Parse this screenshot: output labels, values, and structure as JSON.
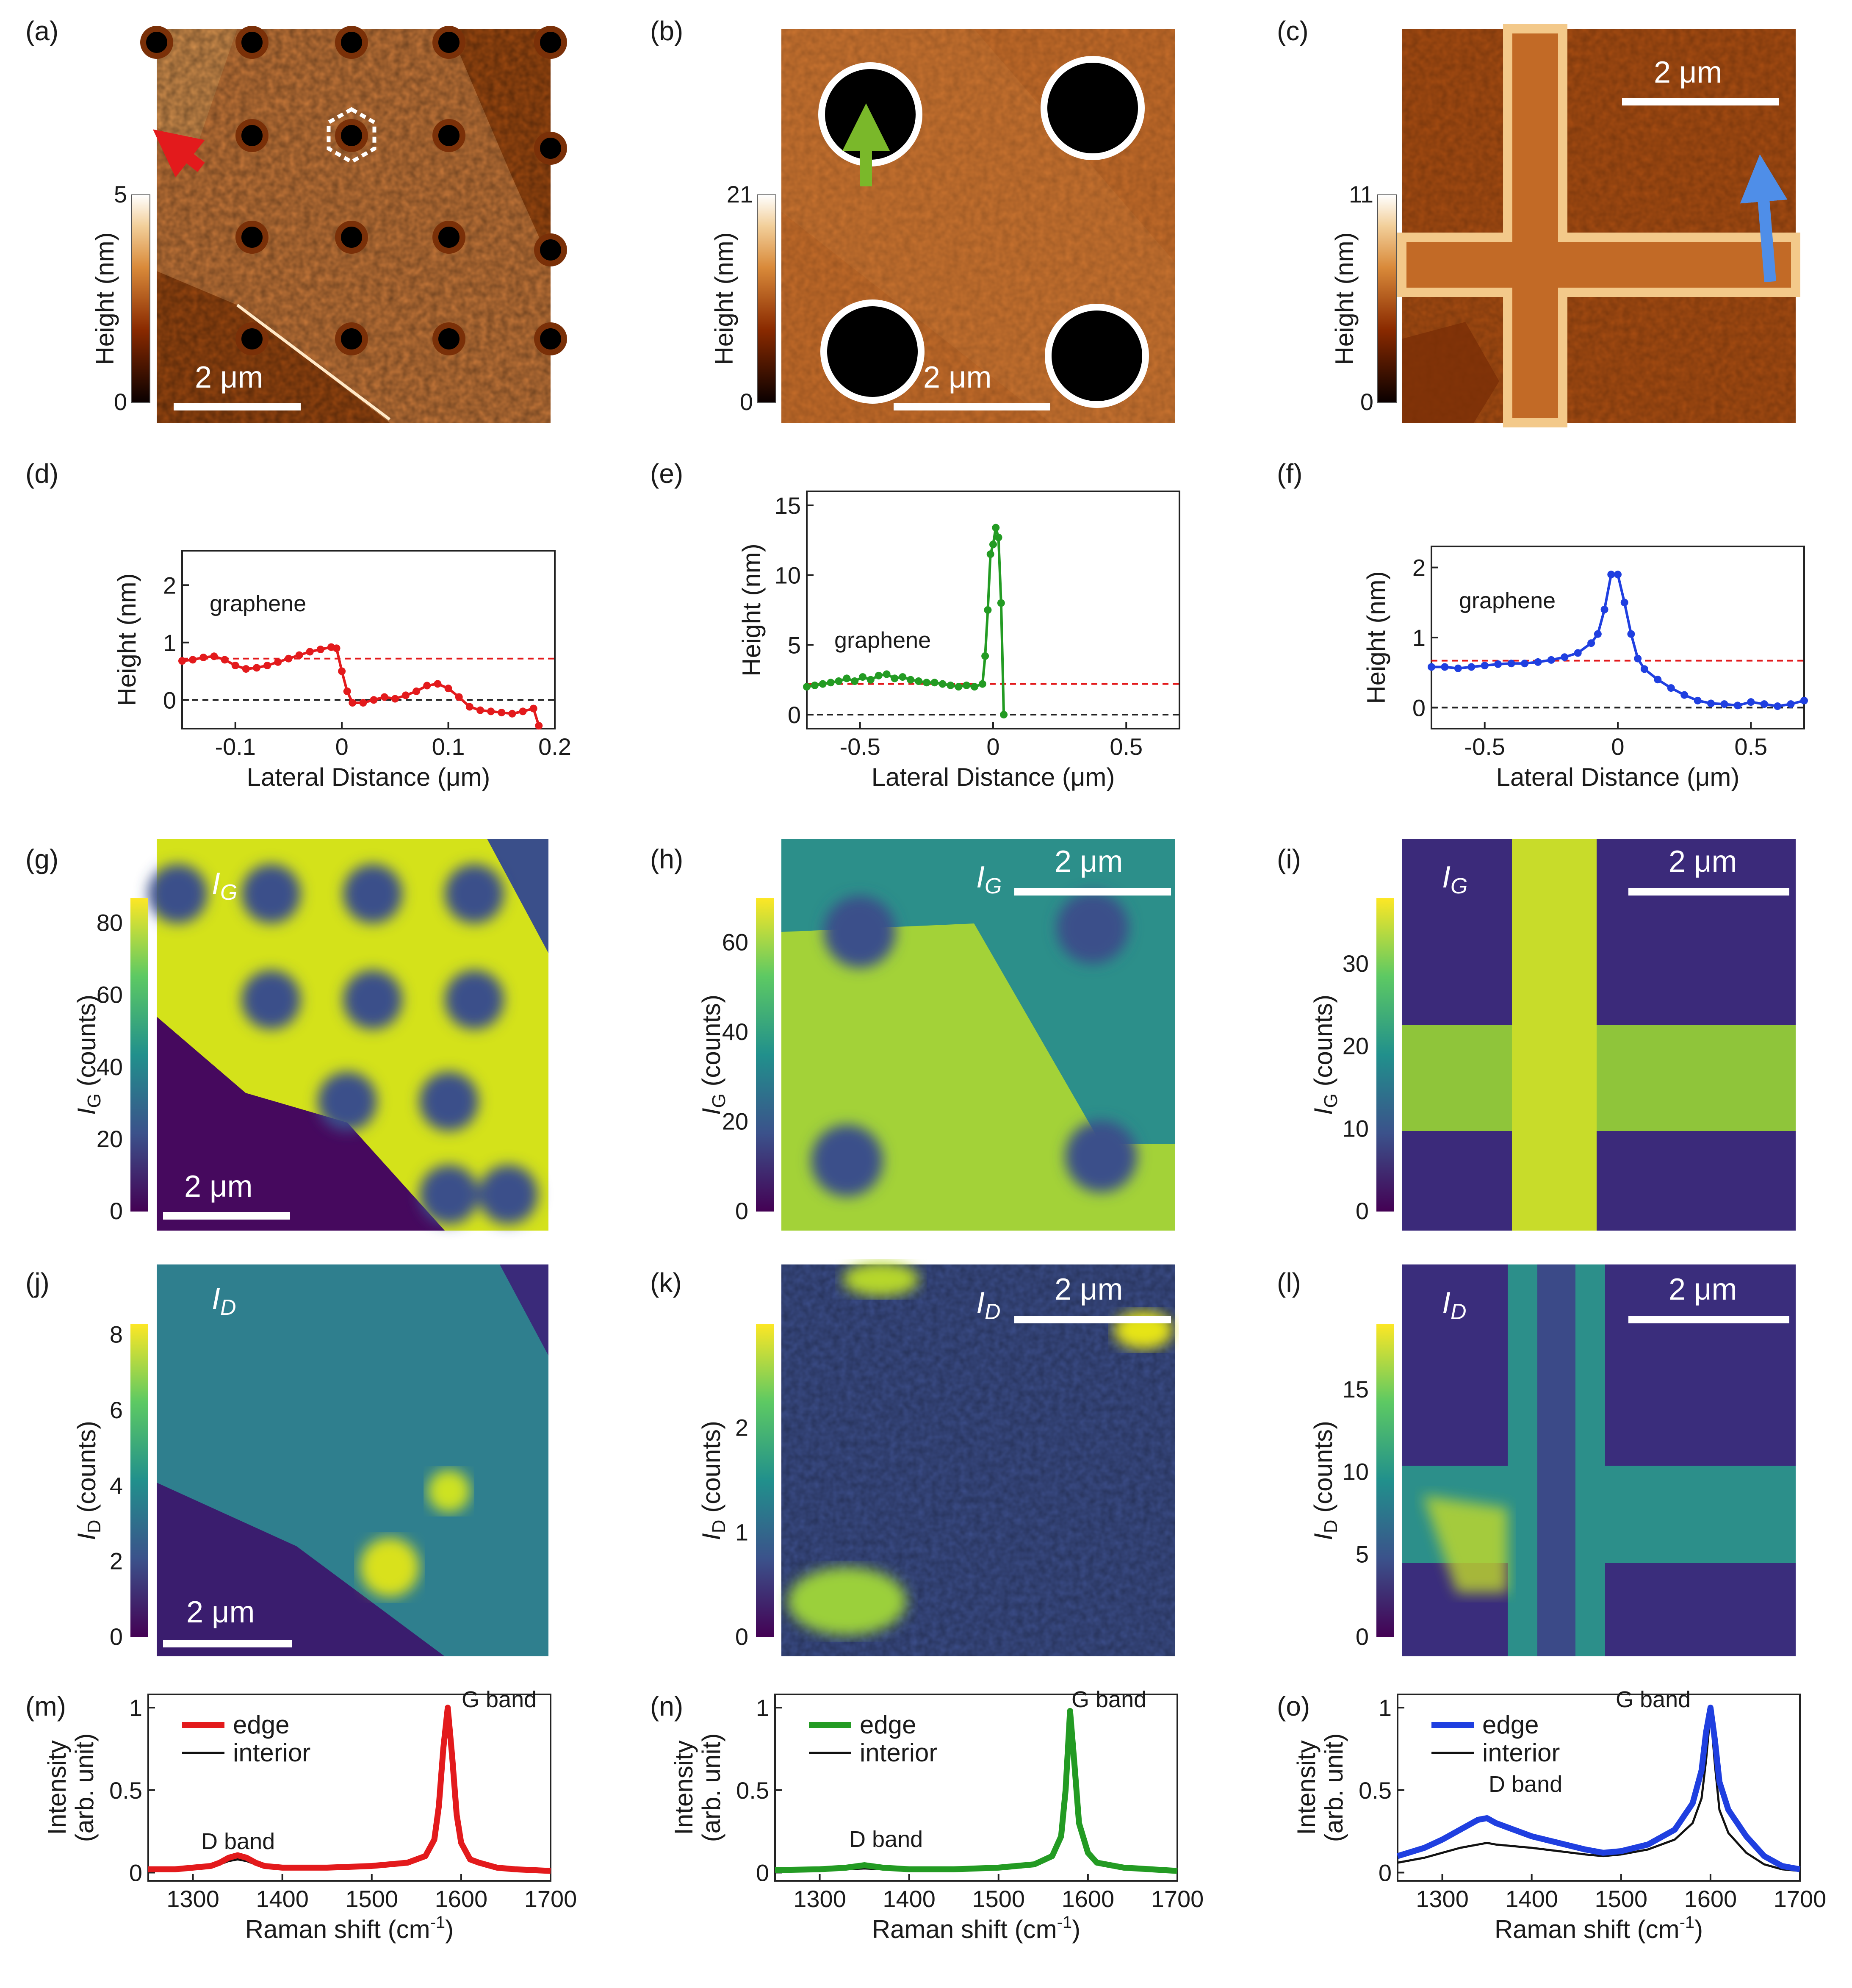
{
  "panels": {
    "a": {
      "label": "(a)",
      "cbar_title": "Height (nm)",
      "cbar_max": "5",
      "cbar_min": "0",
      "scale": "2 μm"
    },
    "b": {
      "label": "(b)",
      "cbar_title": "Height (nm)",
      "cbar_max": "21",
      "cbar_min": "0",
      "scale": "2 μm"
    },
    "c": {
      "label": "(c)",
      "cbar_title": "Height (nm)",
      "cbar_max": "11",
      "cbar_min": "0",
      "scale": "2 μm"
    },
    "d": {
      "label": "(d)"
    },
    "e": {
      "label": "(e)"
    },
    "f": {
      "label": "(f)"
    },
    "g": {
      "label": "(g)",
      "map_label": "I",
      "map_sub": "G",
      "cbar_title": "I",
      "cbar_sub": "G",
      "cbar_unit": " (counts)",
      "ticks": [
        "0",
        "20",
        "40",
        "60",
        "80"
      ],
      "scale": "2 μm"
    },
    "h": {
      "label": "(h)",
      "map_label": "I",
      "map_sub": "G",
      "cbar_title": "I",
      "cbar_sub": "G",
      "cbar_unit": " (counts)",
      "ticks": [
        "0",
        "20",
        "40",
        "60"
      ],
      "scale": "2 μm"
    },
    "i": {
      "label": "(i)",
      "map_label": "I",
      "map_sub": "G",
      "cbar_title": "I",
      "cbar_sub": "G",
      "cbar_unit": " (counts)",
      "ticks": [
        "0",
        "10",
        "20",
        "30"
      ],
      "scale": "2 μm"
    },
    "j": {
      "label": "(j)",
      "map_label": "I",
      "map_sub": "D",
      "cbar_title": "I",
      "cbar_sub": "D",
      "cbar_unit": " (counts)",
      "ticks": [
        "0",
        "2",
        "4",
        "6",
        "8"
      ],
      "scale": "2 μm"
    },
    "k": {
      "label": "(k)",
      "map_label": "I",
      "map_sub": "D",
      "cbar_title": "I",
      "cbar_sub": "D",
      "cbar_unit": " (counts)",
      "ticks": [
        "0",
        "1",
        "2"
      ],
      "scale": "2 μm"
    },
    "l": {
      "label": "(l)",
      "map_label": "I",
      "map_sub": "D",
      "cbar_title": "I",
      "cbar_sub": "D",
      "cbar_unit": " (counts)",
      "ticks": [
        "0",
        "5",
        "10",
        "15"
      ],
      "scale": "2 μm"
    },
    "m": {
      "label": "(m)"
    },
    "n": {
      "label": "(n)"
    },
    "o": {
      "label": "(o)"
    }
  },
  "colors": {
    "red": "#e31a1c",
    "green": "#239b23",
    "blue": "#1f3fe0",
    "ref_dash": "#e31a1c"
  },
  "chart_data": [
    {
      "id": "d",
      "type": "line",
      "xlabel": "Lateral Distance  (μm)",
      "ylabel": "Height  (nm)",
      "xlim": [
        -0.15,
        0.2
      ],
      "ylim": [
        -0.5,
        2.6
      ],
      "xticks": [
        "-0.1",
        "0",
        "0.1",
        "0.2"
      ],
      "yticks": [
        "0",
        "1",
        "2"
      ],
      "annotation": "graphene",
      "ref_lines": [
        0.72,
        0
      ],
      "series": [
        {
          "color": "red",
          "x": [
            -0.15,
            -0.14,
            -0.13,
            -0.12,
            -0.11,
            -0.1,
            -0.09,
            -0.08,
            -0.07,
            -0.06,
            -0.05,
            -0.04,
            -0.03,
            -0.02,
            -0.01,
            -0.005,
            0,
            0.005,
            0.01,
            0.02,
            0.03,
            0.04,
            0.05,
            0.06,
            0.07,
            0.08,
            0.09,
            0.1,
            0.11,
            0.12,
            0.13,
            0.14,
            0.15,
            0.16,
            0.17,
            0.18,
            0.185
          ],
          "y": [
            0.68,
            0.7,
            0.74,
            0.76,
            0.7,
            0.6,
            0.54,
            0.56,
            0.6,
            0.66,
            0.72,
            0.78,
            0.84,
            0.88,
            0.92,
            0.9,
            0.5,
            0.15,
            -0.05,
            -0.05,
            0.0,
            0.05,
            0.02,
            0.08,
            0.15,
            0.25,
            0.28,
            0.2,
            0.05,
            -0.12,
            -0.18,
            -0.2,
            -0.22,
            -0.24,
            -0.2,
            -0.15,
            -0.45
          ]
        }
      ]
    },
    {
      "id": "e",
      "type": "line",
      "xlabel": "Lateral Distance  (μm)",
      "ylabel": "Height  (nm)",
      "xlim": [
        -0.7,
        0.7
      ],
      "ylim": [
        -1,
        16
      ],
      "xticks": [
        "-0.5",
        "0",
        "0.5"
      ],
      "yticks": [
        "0",
        "5",
        "10",
        "15"
      ],
      "annotation": "graphene",
      "ref_lines": [
        2.2,
        0
      ],
      "series": [
        {
          "color": "green",
          "x": [
            -0.7,
            -0.67,
            -0.64,
            -0.61,
            -0.58,
            -0.55,
            -0.52,
            -0.49,
            -0.46,
            -0.43,
            -0.4,
            -0.37,
            -0.34,
            -0.31,
            -0.28,
            -0.25,
            -0.22,
            -0.19,
            -0.16,
            -0.13,
            -0.1,
            -0.07,
            -0.04,
            -0.03,
            -0.02,
            -0.01,
            0.0,
            0.01,
            0.02,
            0.03,
            0.04
          ],
          "y": [
            2.0,
            2.1,
            2.2,
            2.3,
            2.4,
            2.6,
            2.4,
            2.7,
            2.5,
            2.8,
            2.9,
            2.6,
            2.7,
            2.5,
            2.4,
            2.3,
            2.3,
            2.2,
            2.1,
            2.0,
            2.1,
            2.0,
            2.2,
            4.2,
            7.5,
            11.5,
            12.2,
            13.4,
            12.7,
            8.0,
            0.0
          ]
        }
      ]
    },
    {
      "id": "f",
      "type": "line",
      "xlabel": "Lateral Distance  (μm)",
      "ylabel": "Height  (nm)",
      "xlim": [
        -0.7,
        0.7
      ],
      "ylim": [
        -0.3,
        2.3
      ],
      "xticks": [
        "-0.5",
        "0",
        "0.5"
      ],
      "yticks": [
        "0",
        "1",
        "2"
      ],
      "annotation": "graphene",
      "ref_lines": [
        0.67,
        0
      ],
      "series": [
        {
          "color": "blue",
          "x": [
            -0.7,
            -0.65,
            -0.6,
            -0.55,
            -0.5,
            -0.45,
            -0.4,
            -0.35,
            -0.3,
            -0.25,
            -0.2,
            -0.15,
            -0.1,
            -0.075,
            -0.05,
            -0.025,
            0,
            0.025,
            0.05,
            0.075,
            0.1,
            0.15,
            0.2,
            0.25,
            0.3,
            0.35,
            0.4,
            0.45,
            0.5,
            0.55,
            0.6,
            0.65,
            0.7
          ],
          "y": [
            0.58,
            0.58,
            0.56,
            0.58,
            0.6,
            0.62,
            0.63,
            0.63,
            0.65,
            0.68,
            0.72,
            0.78,
            0.92,
            1.05,
            1.4,
            1.9,
            1.9,
            1.5,
            1.05,
            0.7,
            0.55,
            0.4,
            0.28,
            0.18,
            0.1,
            0.06,
            0.05,
            0.03,
            0.08,
            0.05,
            0.02,
            0.05,
            0.1
          ]
        }
      ]
    },
    {
      "id": "m",
      "type": "line",
      "xlabel": "Raman shift  (cm",
      "xlabel_sup": "-1",
      "xlabel_end": ")",
      "ylabel": "Intensity",
      "ylabel2": "(arb. unit)",
      "xlim": [
        1250,
        1700
      ],
      "ylim": [
        -0.05,
        1.08
      ],
      "xticks": [
        "1300",
        "1400",
        "1500",
        "1600",
        "1700"
      ],
      "yticks": [
        "0",
        "0.5",
        "1"
      ],
      "annotations": [
        "D band",
        "G band"
      ],
      "legend": [
        "edge",
        "interior"
      ],
      "series": [
        {
          "name": "edge",
          "color": "red",
          "x": [
            1250,
            1280,
            1300,
            1320,
            1330,
            1340,
            1350,
            1360,
            1370,
            1380,
            1400,
            1450,
            1500,
            1540,
            1560,
            1570,
            1575,
            1580,
            1585,
            1590,
            1595,
            1600,
            1610,
            1620,
            1640,
            1660,
            1700
          ],
          "y": [
            0.02,
            0.02,
            0.03,
            0.04,
            0.06,
            0.09,
            0.105,
            0.09,
            0.06,
            0.04,
            0.03,
            0.03,
            0.04,
            0.06,
            0.1,
            0.2,
            0.4,
            0.75,
            1.0,
            0.7,
            0.35,
            0.18,
            0.08,
            0.06,
            0.03,
            0.02,
            0.01
          ]
        },
        {
          "name": "interior",
          "color": "black",
          "x": [
            1250,
            1280,
            1300,
            1320,
            1330,
            1340,
            1350,
            1360,
            1370,
            1380,
            1400,
            1450,
            1500,
            1540,
            1560,
            1570,
            1575,
            1580,
            1585,
            1590,
            1595,
            1600,
            1610,
            1620,
            1640,
            1660,
            1700
          ],
          "y": [
            0.02,
            0.02,
            0.03,
            0.04,
            0.05,
            0.07,
            0.08,
            0.07,
            0.05,
            0.04,
            0.03,
            0.03,
            0.04,
            0.06,
            0.1,
            0.2,
            0.4,
            0.75,
            0.98,
            0.68,
            0.34,
            0.18,
            0.08,
            0.06,
            0.03,
            0.02,
            0.01
          ]
        }
      ]
    },
    {
      "id": "n",
      "type": "line",
      "xlabel": "Raman shift  (cm",
      "xlabel_sup": "-1",
      "xlabel_end": ")",
      "ylabel": "Intensity",
      "ylabel2": "(arb. unit)",
      "xlim": [
        1250,
        1700
      ],
      "ylim": [
        -0.05,
        1.08
      ],
      "xticks": [
        "1300",
        "1400",
        "1500",
        "1600",
        "1700"
      ],
      "yticks": [
        "0",
        "0.5",
        "1"
      ],
      "annotations": [
        "D band",
        "G band"
      ],
      "legend": [
        "edge",
        "interior"
      ],
      "series": [
        {
          "name": "edge",
          "color": "green",
          "x": [
            1250,
            1300,
            1330,
            1350,
            1370,
            1400,
            1450,
            1500,
            1540,
            1560,
            1570,
            1575,
            1580,
            1585,
            1590,
            1600,
            1610,
            1640,
            1700
          ],
          "y": [
            0.015,
            0.02,
            0.03,
            0.045,
            0.03,
            0.02,
            0.02,
            0.03,
            0.05,
            0.1,
            0.22,
            0.5,
            0.98,
            0.65,
            0.3,
            0.12,
            0.06,
            0.03,
            0.01
          ]
        },
        {
          "name": "interior",
          "color": "black",
          "x": [
            1250,
            1300,
            1330,
            1350,
            1370,
            1400,
            1450,
            1500,
            1540,
            1560,
            1570,
            1575,
            1580,
            1585,
            1590,
            1600,
            1610,
            1640,
            1700
          ],
          "y": [
            0.012,
            0.015,
            0.02,
            0.025,
            0.02,
            0.015,
            0.018,
            0.025,
            0.045,
            0.09,
            0.2,
            0.48,
            0.96,
            0.62,
            0.28,
            0.11,
            0.05,
            0.025,
            0.01
          ]
        }
      ]
    },
    {
      "id": "o",
      "type": "line",
      "xlabel": "Raman shift  (cm",
      "xlabel_sup": "-1",
      "xlabel_end": ")",
      "ylabel": "Intensity",
      "ylabel2": "(arb. unit)",
      "xlim": [
        1250,
        1700
      ],
      "ylim": [
        -0.05,
        1.08
      ],
      "xticks": [
        "1300",
        "1400",
        "1500",
        "1600",
        "1700"
      ],
      "yticks": [
        "0",
        "0.5",
        "1"
      ],
      "annotations": [
        "D band",
        "G band"
      ],
      "legend": [
        "edge",
        "interior"
      ],
      "series": [
        {
          "name": "edge",
          "color": "blue",
          "x": [
            1250,
            1280,
            1300,
            1320,
            1340,
            1350,
            1360,
            1380,
            1400,
            1430,
            1460,
            1480,
            1500,
            1530,
            1560,
            1580,
            1590,
            1595,
            1600,
            1605,
            1610,
            1620,
            1640,
            1660,
            1680,
            1700
          ],
          "y": [
            0.1,
            0.15,
            0.2,
            0.26,
            0.32,
            0.33,
            0.3,
            0.26,
            0.22,
            0.18,
            0.14,
            0.12,
            0.13,
            0.17,
            0.26,
            0.42,
            0.62,
            0.85,
            1.0,
            0.8,
            0.55,
            0.38,
            0.22,
            0.1,
            0.04,
            0.02
          ]
        },
        {
          "name": "interior",
          "color": "black",
          "x": [
            1250,
            1280,
            1300,
            1320,
            1340,
            1350,
            1360,
            1380,
            1400,
            1430,
            1460,
            1480,
            1500,
            1530,
            1560,
            1580,
            1590,
            1595,
            1600,
            1605,
            1610,
            1620,
            1640,
            1660,
            1680,
            1700
          ],
          "y": [
            0.06,
            0.09,
            0.12,
            0.15,
            0.17,
            0.18,
            0.17,
            0.16,
            0.15,
            0.13,
            0.11,
            0.1,
            0.11,
            0.14,
            0.2,
            0.3,
            0.45,
            0.68,
            0.97,
            0.65,
            0.38,
            0.24,
            0.12,
            0.05,
            0.02,
            0.01
          ]
        }
      ]
    }
  ]
}
